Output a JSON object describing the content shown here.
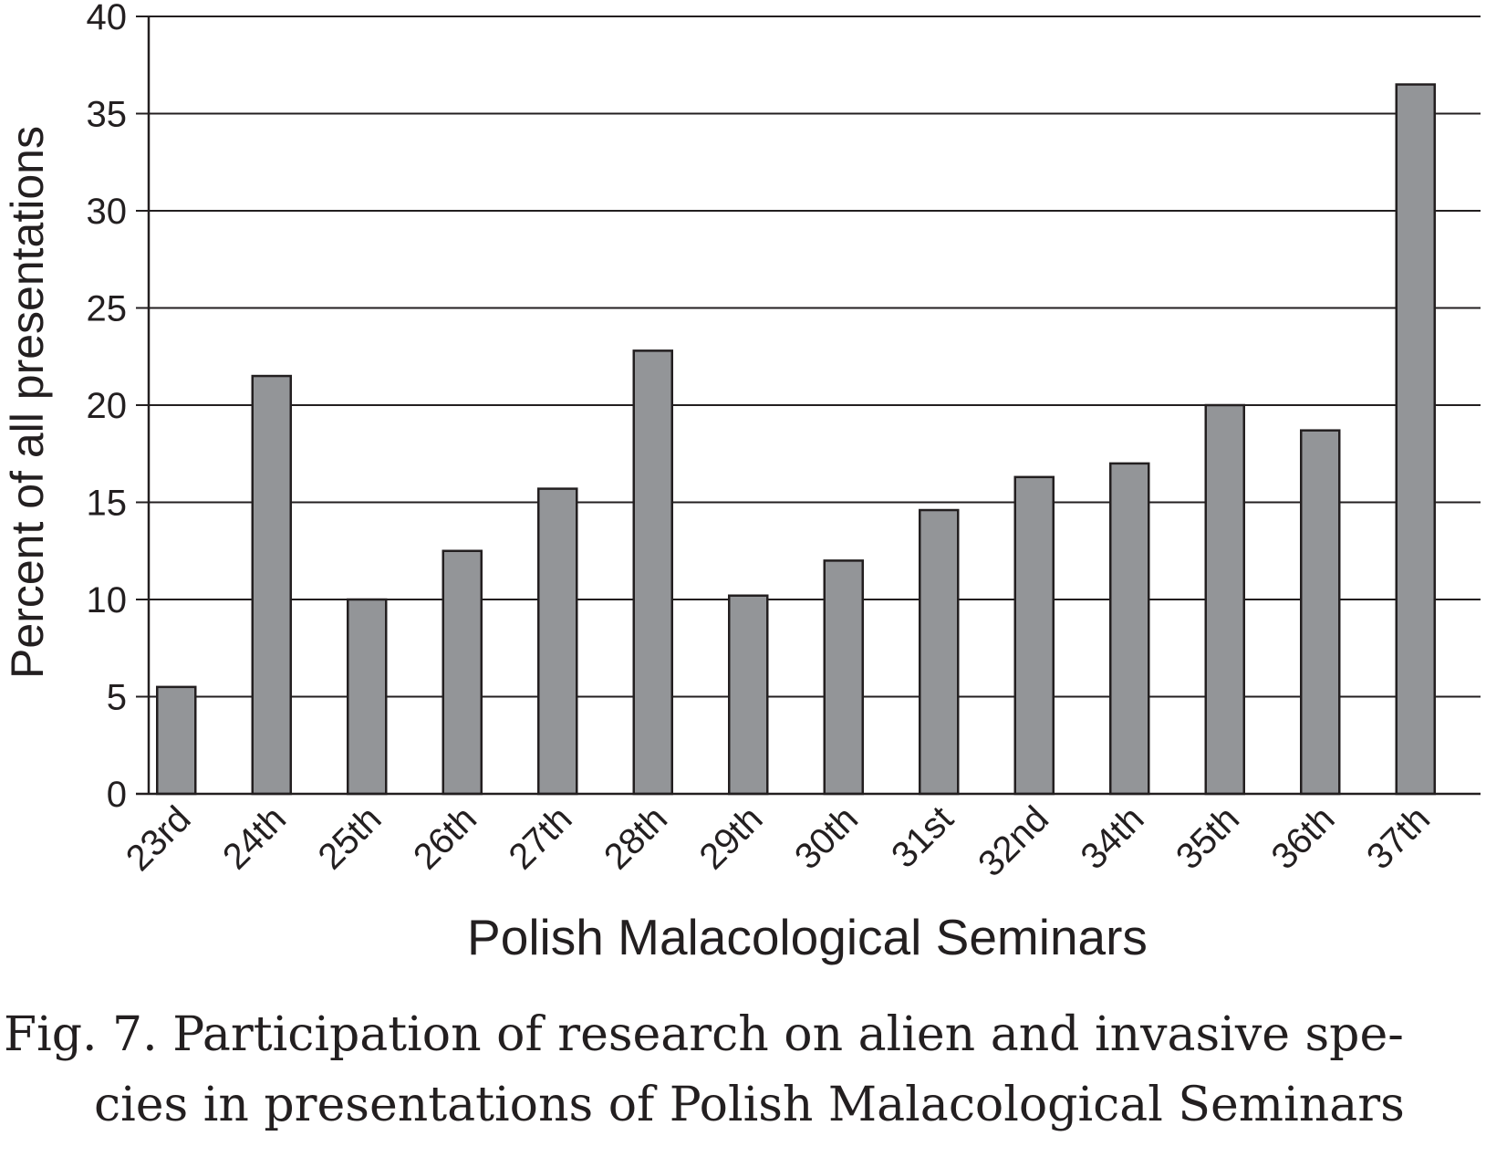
{
  "chart_data": {
    "type": "bar",
    "categories": [
      "23rd",
      "24th",
      "25th",
      "26th",
      "27th",
      "28th",
      "29th",
      "30th",
      "31st",
      "32nd",
      "34th",
      "35th",
      "36th",
      "37th"
    ],
    "values": [
      5.5,
      21.5,
      10.0,
      12.5,
      15.7,
      22.8,
      10.2,
      12.0,
      14.6,
      16.3,
      17.0,
      20.0,
      18.7,
      36.5
    ],
    "title": "",
    "xlabel": "Polish Malacological Seminars",
    "ylabel": "Percent of all presentations",
    "ylim": [
      0,
      40
    ],
    "yticks": [
      0,
      5,
      10,
      15,
      20,
      25,
      30,
      35,
      40
    ],
    "grid": true,
    "bar_color": "#939598",
    "bar_stroke": "#231f20"
  },
  "caption": {
    "line1": "Fig. 7. Participation of research on alien and invasive spe-",
    "line2": "cies in presentations of Polish Malacological Seminars"
  }
}
